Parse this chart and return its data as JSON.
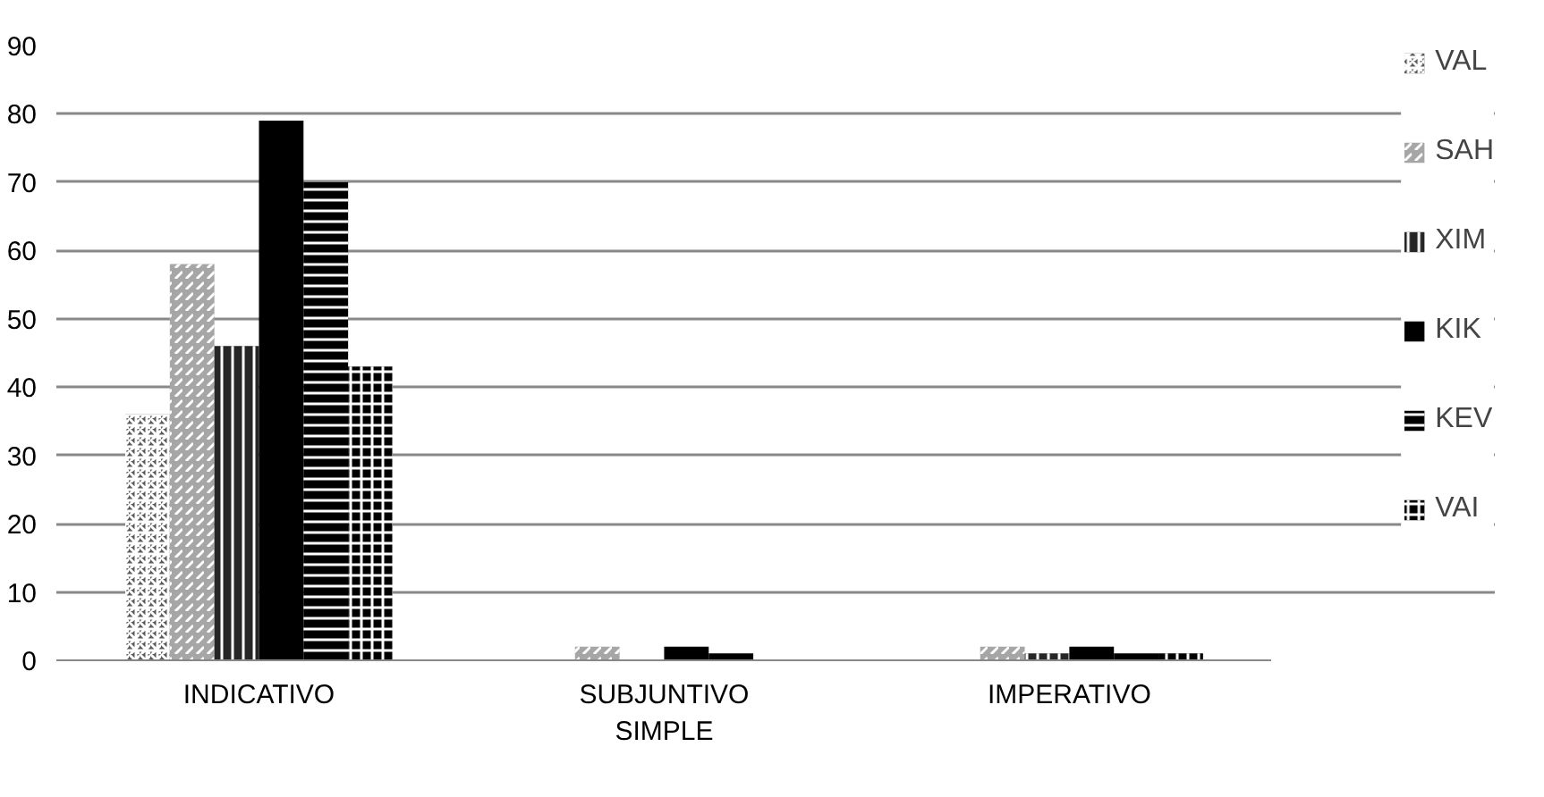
{
  "chart_data": {
    "type": "bar",
    "categories": [
      "INDICATIVO",
      "SUBJUNTIVO SIMPLE",
      "IMPERATIVO"
    ],
    "series": [
      {
        "name": "VAL",
        "color": "#595959",
        "values": [
          36,
          0,
          0
        ]
      },
      {
        "name": "SAH",
        "color": "#a6a6a6",
        "values": [
          58,
          2,
          2
        ]
      },
      {
        "name": "XIM",
        "color": "#262626",
        "values": [
          46,
          0,
          1
        ]
      },
      {
        "name": "KIK",
        "color": "#000000",
        "values": [
          79,
          2,
          2
        ]
      },
      {
        "name": "KEV",
        "color": "#000000",
        "values": [
          70,
          1,
          1
        ]
      },
      {
        "name": "VAI",
        "color": "#000000",
        "values": [
          43,
          0,
          1
        ]
      }
    ],
    "ylim": [
      0,
      90
    ],
    "yticks": [
      0,
      10,
      20,
      30,
      40,
      50,
      60,
      70,
      80,
      90
    ],
    "grid": "y",
    "legend": "right"
  }
}
